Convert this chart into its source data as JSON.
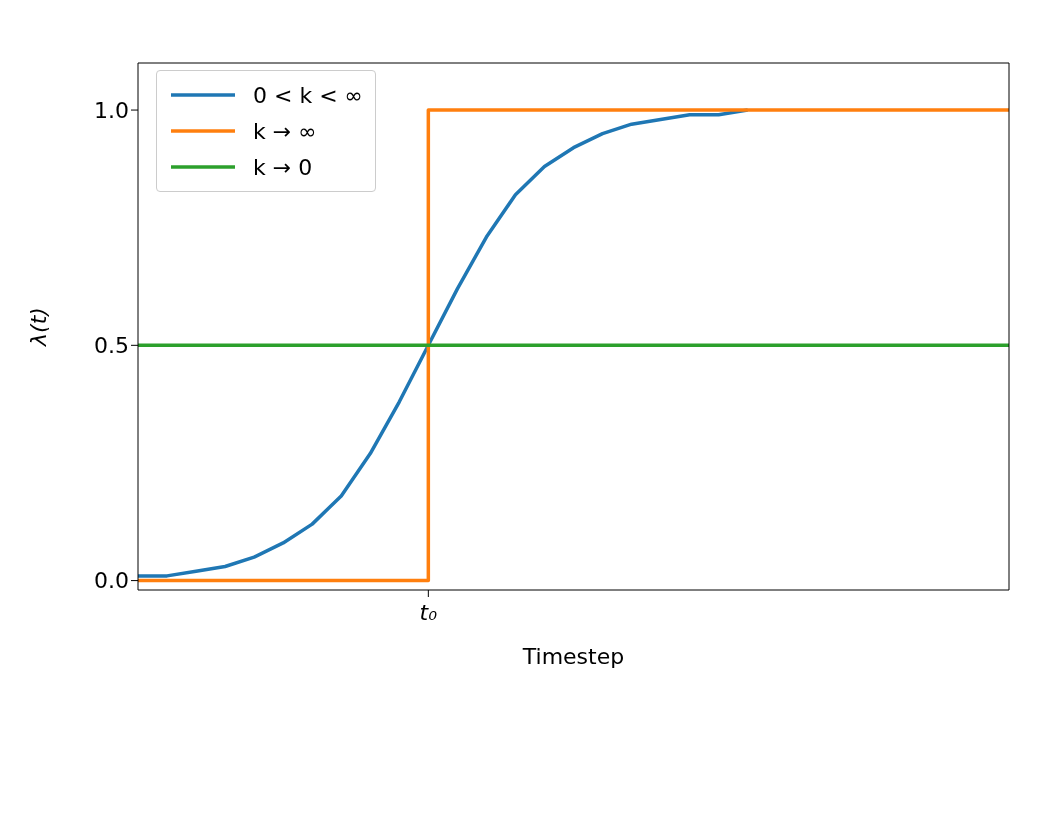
{
  "chart_data": {
    "type": "line",
    "xlabel": "Timestep",
    "ylabel": "λ(t)",
    "categories": [
      null,
      null,
      null,
      null,
      null,
      null,
      null,
      null,
      null,
      null,
      "t₀",
      null,
      null,
      null,
      null,
      null,
      null,
      null,
      null,
      null,
      null,
      null,
      null,
      null,
      null,
      null,
      null,
      null,
      null,
      null,
      null
    ],
    "series": [
      {
        "name": "0 < k < ∞",
        "type": "line",
        "color": "#1f77b4",
        "values": [
          0.01,
          0.01,
          0.02,
          0.03,
          0.05,
          0.08,
          0.12,
          0.18,
          0.27,
          0.38,
          0.5,
          0.62,
          0.73,
          0.82,
          0.88,
          0.92,
          0.95,
          0.97,
          0.98,
          0.99,
          0.99,
          1.0,
          null,
          null,
          null,
          null,
          null,
          null,
          null,
          null,
          null
        ]
      },
      {
        "name": "k → ∞",
        "type": "step",
        "color": "#ff7f0e",
        "values": [
          0,
          0,
          0,
          0,
          0,
          0,
          0,
          0,
          0,
          0,
          1,
          1,
          1,
          1,
          1,
          1,
          1,
          1,
          1,
          1,
          1,
          1,
          1,
          1,
          1,
          1,
          1,
          1,
          1,
          1,
          1
        ]
      },
      {
        "name": "k → 0",
        "type": "line",
        "color": "#2ca02c",
        "values": [
          0.5,
          0.5,
          0.5,
          0.5,
          0.5,
          0.5,
          0.5,
          0.5,
          0.5,
          0.5,
          0.5,
          0.5,
          0.5,
          0.5,
          0.5,
          0.5,
          0.5,
          0.5,
          0.5,
          0.5,
          0.5,
          0.5,
          0.5,
          0.5,
          0.5,
          0.5,
          0.5,
          0.5,
          0.5,
          0.5,
          0.5
        ]
      }
    ],
    "ylim": [
      -0.02,
      1.1
    ],
    "yticks": [
      {
        "value": 0,
        "label": "0.0"
      },
      {
        "value": 0.5,
        "label": "0.5"
      },
      {
        "value": 1,
        "label": "1.0"
      }
    ],
    "legend": "top left",
    "marker": "none",
    "line_style": "solid",
    "grid": false
  }
}
